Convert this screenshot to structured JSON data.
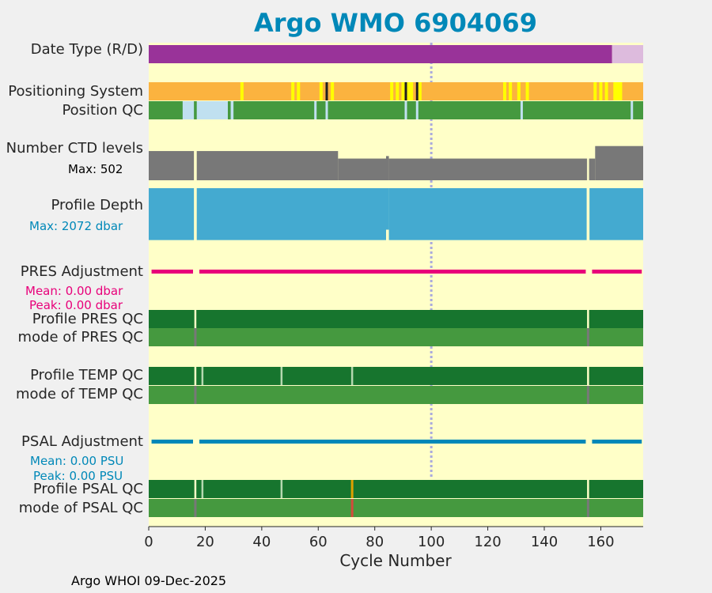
{
  "title": "Argo WMO 6904069",
  "footer": "Argo WHOI 09-Dec-2025",
  "colors": {
    "title": "#0088b8",
    "background": "#ffffc8",
    "pink": "#e8007a",
    "blue": "#0088b8",
    "orange": "#fbb33f",
    "yellow": "#ffff00",
    "black": "#202020",
    "darkgreen": "#17752e",
    "green": "#45993f",
    "lightblue": "#c0e0f0",
    "gray": "#787878",
    "depthblue": "#44aad0",
    "purple": "#993399",
    "lavender": "#ddbbdd",
    "red": "#d44b3b",
    "amber": "#e0a000"
  },
  "row_labels": {
    "date_type": "Date Type (R/D)",
    "positioning_system": "Positioning System",
    "position_qc": "Position QC",
    "ctd_levels": "Number CTD levels",
    "ctd_max": "Max: 502",
    "profile_depth": "Profile Depth",
    "depth_max": "Max: 2072 dbar",
    "pres_adjustment": "PRES Adjustment",
    "pres_mean": "Mean: 0.00 dbar",
    "pres_peak": "Peak: 0.00 dbar",
    "profile_pres_qc": "Profile PRES QC",
    "mode_pres_qc": "mode of PRES QC",
    "profile_temp_qc": "Profile TEMP QC",
    "mode_temp_qc": "mode of TEMP QC",
    "psal_adjustment": "PSAL Adjustment",
    "psal_mean": "Mean: 0.00 PSU",
    "psal_peak": "Peak: 0.00 PSU",
    "profile_psal_qc": "Profile PSAL QC",
    "mode_psal_qc": "mode of PSAL QC"
  },
  "chart_data": {
    "type": "bar",
    "xlabel": "Cycle Number",
    "xlim": [
      0,
      175
    ],
    "xticks": [
      0,
      20,
      40,
      60,
      80,
      100,
      120,
      140,
      160
    ],
    "reference_line_x": 100,
    "date_type": [
      {
        "from": 0,
        "to": 164,
        "mode": "D"
      },
      {
        "from": 164,
        "to": 175,
        "mode": "R"
      }
    ],
    "positioning_system": {
      "base": "GPS",
      "marks": [
        {
          "x": 33,
          "kind": "yellow"
        },
        {
          "x": 51,
          "kind": "yellow"
        },
        {
          "x": 53,
          "kind": "yellow"
        },
        {
          "x": 61,
          "kind": "yellow"
        },
        {
          "x": 63,
          "kind": "black"
        },
        {
          "x": 65,
          "kind": "yellow"
        },
        {
          "x": 86,
          "kind": "yellow"
        },
        {
          "x": 88,
          "kind": "yellow"
        },
        {
          "x": 90,
          "kind": "yellow"
        },
        {
          "x": 91,
          "kind": "black"
        },
        {
          "x": 92,
          "kind": "yellow"
        },
        {
          "x": 93,
          "kind": "yellow"
        },
        {
          "x": 95,
          "kind": "black"
        },
        {
          "x": 96,
          "kind": "yellow"
        },
        {
          "x": 126,
          "kind": "yellow"
        },
        {
          "x": 128,
          "kind": "yellow"
        },
        {
          "x": 131,
          "kind": "yellow"
        },
        {
          "x": 134,
          "kind": "yellow"
        },
        {
          "x": 158,
          "kind": "yellow"
        },
        {
          "x": 160,
          "kind": "yellow"
        },
        {
          "x": 162,
          "kind": "yellow"
        },
        {
          "x": 165,
          "kind": "yellow"
        },
        {
          "x": 166,
          "kind": "yellow"
        },
        {
          "x": 167,
          "kind": "yellow"
        }
      ]
    },
    "position_qc": {
      "base": "1",
      "light_ranges": [
        [
          12,
          16
        ],
        [
          17,
          28
        ],
        [
          29,
          30
        ]
      ],
      "light_marks": [
        59,
        63,
        91,
        95,
        132,
        171
      ]
    },
    "ctd_levels": {
      "max": 502,
      "segments": [
        {
          "from": 0,
          "to": 16,
          "value": 350
        },
        {
          "from": 17,
          "to": 67,
          "value": 350
        },
        {
          "from": 67,
          "to": 84,
          "value": 260
        },
        {
          "from": 84,
          "to": 85,
          "value": 290
        },
        {
          "from": 85,
          "to": 155,
          "value": 260
        },
        {
          "from": 155,
          "to": 158,
          "value": 260
        },
        {
          "from": 158,
          "to": 175,
          "value": 410
        }
      ],
      "gaps": [
        16,
        155
      ]
    },
    "profile_depth": {
      "max_dbar": 2072,
      "segments": [
        {
          "from": 0,
          "to": 16,
          "value": 2000
        },
        {
          "from": 17,
          "to": 84,
          "value": 2000
        },
        {
          "from": 84,
          "to": 85,
          "value": 1600
        },
        {
          "from": 85,
          "to": 155,
          "value": 2000
        },
        {
          "from": 156,
          "to": 175,
          "value": 2000
        }
      ]
    },
    "pres_adjustment": {
      "mean_dbar": 0.0,
      "peak_dbar": 0.0,
      "gaps": [
        16,
        155
      ]
    },
    "psal_adjustment": {
      "mean_psu": 0.0,
      "peak_psu": 0.0,
      "gaps": [
        16,
        155
      ]
    },
    "profile_pres_qc": {
      "base": "A",
      "gap_marks": [
        16,
        155
      ]
    },
    "mode_pres_qc": {
      "base": "1",
      "gray_marks": [
        16,
        155
      ]
    },
    "profile_temp_qc": {
      "base": "A",
      "gap_marks": [
        16,
        155
      ],
      "light_marks": [
        19,
        47,
        72
      ]
    },
    "mode_temp_qc": {
      "base": "1",
      "gray_marks": [
        16,
        155
      ]
    },
    "profile_psal_qc": {
      "base": "A",
      "gap_marks": [
        16,
        155
      ],
      "light_marks": [
        19,
        47
      ],
      "orange_marks": [
        72
      ]
    },
    "mode_psal_qc": {
      "base": "1",
      "gray_marks": [
        16,
        155
      ],
      "red_marks": [
        72
      ]
    }
  }
}
